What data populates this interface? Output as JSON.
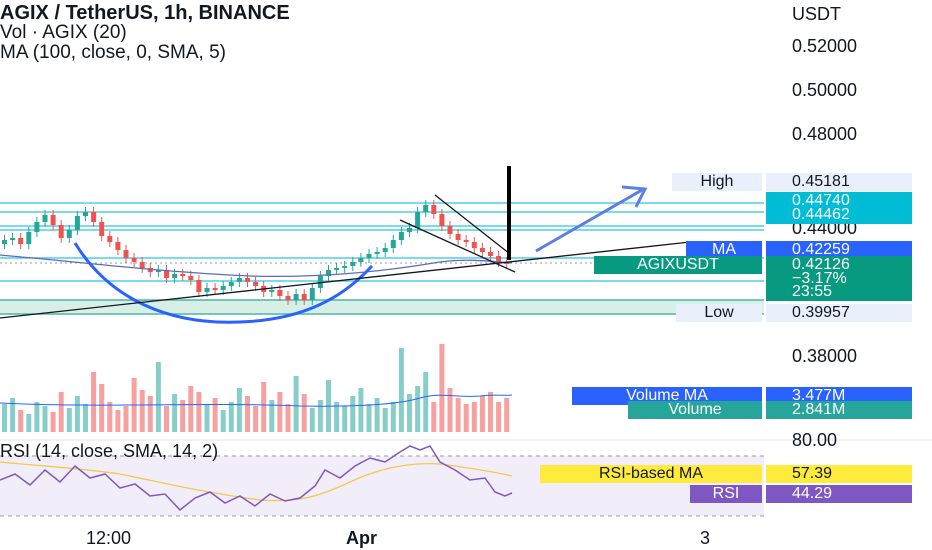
{
  "header": {
    "title": "AGIX / TetherUS, 1h, BINANCE",
    "volume_indicator": "Vol · AGIX (20)",
    "ma_indicator": "MA (100, close, 0, SMA, 5)"
  },
  "price_axis": {
    "currency": "USDT",
    "ticks": [
      "0.52000",
      "0.50000",
      "0.48000",
      "0.44000",
      "0.38000"
    ]
  },
  "price_labels": {
    "high_label": "High",
    "high_value": "0.45181",
    "level_1": "0.44740",
    "level_2": "0.44462",
    "ma_label": "MA",
    "ma_value": "0.42259",
    "symbol_label": "AGIXUSDT",
    "last_price": "0.42126",
    "change_percent": "−3.17%",
    "countdown": "23:55",
    "low_label": "Low",
    "low_value": "0.39957"
  },
  "volume_labels": {
    "volume_ma_label": "Volume MA",
    "volume_ma_value": "3.477M",
    "volume_label": "Volume",
    "volume_value": "2.841M"
  },
  "rsi": {
    "title": "RSI (14, close, SMA, 14, 2)",
    "axis_top": "80.00",
    "rsi_ma_label": "RSI-based MA",
    "rsi_ma_value": "57.39",
    "rsi_label": "RSI",
    "rsi_value": "44.29"
  },
  "time_axis": {
    "labels": [
      "12:00",
      "Apr",
      "3"
    ]
  },
  "colors": {
    "up": "#26a69a",
    "down": "#ef5350",
    "accent_blue": "#2962ff",
    "volume_ma_tag": "#2962ff",
    "volume_tag": "#26a69a",
    "rsi_ma_tag": "#ffeb3b",
    "rsi_tag": "#7e57c2",
    "level_tag": "#00bcd4",
    "last_price_tag": "#089981"
  }
}
